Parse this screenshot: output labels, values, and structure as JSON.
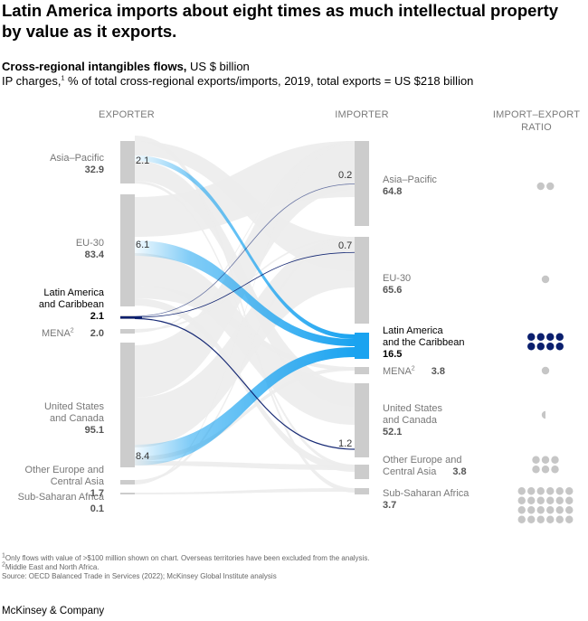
{
  "title": "Latin America imports about eight times as much intellectual property by value as it exports.",
  "subtitle_bold": "Cross-regional intangibles flows,",
  "subtitle_unit": " US $ billion",
  "subtitle_line2_a": "IP charges,",
  "subtitle_line2_sup": "1",
  "subtitle_line2_b": " % of total cross-regional exports/imports, 2019, total exports = US $218 billion",
  "column_headers": {
    "exporter": "EXPORTER",
    "importer": "IMPORTER",
    "ratio_line1": "IMPORT–EXPORT",
    "ratio_line2": "RATIO"
  },
  "footnotes": {
    "f1_sup": "1",
    "f1": "Only flows with value of >$100 million shown on chart. Overseas territories have been excluded from the analysis.",
    "f2_sup": "2",
    "f2": "Middle East and North Africa.",
    "source": "Source: OECD Balanced Trade in Services (2022); McKinsey Global Institute analysis"
  },
  "brand": "McKinsey & Company",
  "colors": {
    "node": "#cccccc",
    "flow_gray": "#ececec",
    "latam_import": "#1aa3f0",
    "latam_export": "#0b1f6e",
    "ratio_dot": "#c6c6c6",
    "ratio_dot_highlight": "#0b1f6e"
  },
  "chart_data": {
    "type": "sankey",
    "exporters": [
      {
        "name_lines": [
          "Asia–Pacific"
        ],
        "value": "32.9",
        "highlight": false
      },
      {
        "name_lines": [
          "EU-30"
        ],
        "value": "83.4",
        "highlight": false
      },
      {
        "name_lines": [
          "Latin America",
          "and Caribbean"
        ],
        "value": "2.1",
        "highlight": true
      },
      {
        "name_lines": [
          "MENA"
        ],
        "sup": "2",
        "value": "2.0",
        "highlight": false
      },
      {
        "name_lines": [
          "United States",
          "and Canada"
        ],
        "value": "95.1",
        "highlight": false
      },
      {
        "name_lines": [
          "Other Europe and",
          "Central Asia"
        ],
        "value": "1.7",
        "highlight": false
      },
      {
        "name_lines": [
          "Sub-Saharan Africa"
        ],
        "value": "0.1",
        "highlight": false
      }
    ],
    "importers": [
      {
        "name_lines": [
          "Asia–Pacific"
        ],
        "value": "64.8",
        "highlight": false
      },
      {
        "name_lines": [
          "EU-30"
        ],
        "value": "65.6",
        "highlight": false
      },
      {
        "name_lines": [
          "Latin America",
          "and the Caribbean"
        ],
        "value": "16.5",
        "highlight": true
      },
      {
        "name_lines": [
          "MENA"
        ],
        "sup": "2",
        "value": "3.8",
        "highlight": false
      },
      {
        "name_lines": [
          "United States",
          "and Canada"
        ],
        "value": "52.1",
        "highlight": false
      },
      {
        "name_lines": [
          "Other Europe and",
          "Central Asia"
        ],
        "value": "3.8",
        "highlight": false
      },
      {
        "name_lines": [
          "Sub-Saharan Africa"
        ],
        "value": "3.7",
        "highlight": false
      }
    ],
    "highlighted_flows": [
      {
        "from": "Asia–Pacific",
        "to": "Latin America and the Caribbean",
        "value": 2.1,
        "label": "2.1"
      },
      {
        "from": "EU-30",
        "to": "Latin America and the Caribbean",
        "value": 6.1,
        "label": "6.1"
      },
      {
        "from": "United States and Canada",
        "to": "Latin America and the Caribbean",
        "value": 8.4,
        "label": "8.4"
      },
      {
        "from": "Latin America and Caribbean",
        "to": "Asia–Pacific",
        "value": 0.2,
        "label": "0.2"
      },
      {
        "from": "Latin America and Caribbean",
        "to": "EU-30",
        "value": 0.7,
        "label": "0.7"
      },
      {
        "from": "Latin America and Caribbean",
        "to": "United States and Canada",
        "value": 1.2,
        "label": "1.2"
      }
    ],
    "import_export_ratio": [
      {
        "region": "Asia–Pacific",
        "dots": 2
      },
      {
        "region": "EU-30",
        "dots": 1
      },
      {
        "region": "Latin America and the Caribbean",
        "dots": 8
      },
      {
        "region": "MENA",
        "dots": 1
      },
      {
        "region": "United States and Canada",
        "dots": 0.5
      },
      {
        "region": "Other Europe and Central Asia",
        "dots": 6
      },
      {
        "region": "Sub-Saharan Africa",
        "dots": 24
      }
    ]
  }
}
